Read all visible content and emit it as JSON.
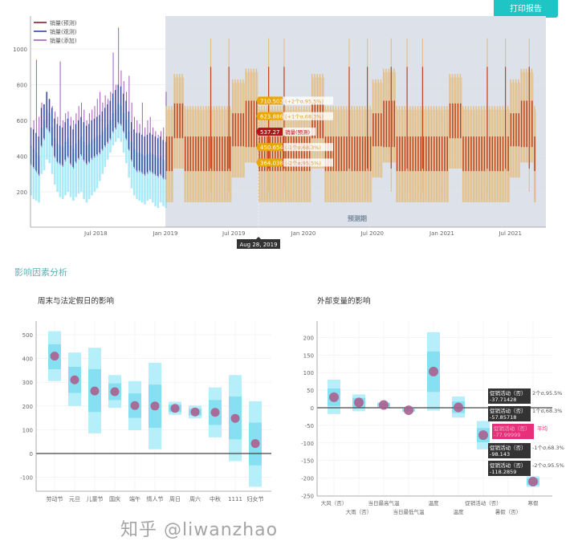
{
  "toolbar": {
    "print_label": "打印报告"
  },
  "section": {
    "title": "影响因素分析"
  },
  "colors": {
    "accent": "#1fc4c4",
    "forecast_bg": "#dde2ea",
    "forecast_1s": "#c2441c",
    "forecast_2s": "#e3c08a",
    "history_band": "#8fe3f5",
    "history_line": "#2b4aa0",
    "history_purple": "#a05cbf",
    "dot": "#a8608e",
    "band_outer": "#b6eef9",
    "band_inner": "#86e0f2"
  },
  "top_chart": {
    "legend": [
      "销量(预测)",
      "销量(观测)",
      "销量(添加)"
    ],
    "y_ticks": [
      200,
      400,
      600,
      800,
      1000
    ],
    "x_ticks": [
      "Jul 2018",
      "Jan 2019",
      "Jul 2019",
      "Jan 2020",
      "Jul 2020",
      "Jan 2021",
      "Jul 2021"
    ],
    "x_tick_dates": [
      "2018-07-01",
      "2019-01-01",
      "2019-07-01",
      "2020-01-01",
      "2020-07-01",
      "2021-01-01",
      "2021-07-01"
    ],
    "forecast_label": "预测期",
    "forecast_start": "2019-01-01",
    "forecast_end": "2021-09-10",
    "hover_date": "Aug 28, 2019",
    "tooltip": [
      {
        "value": "710.502",
        "label": "(+2个σ,95.5%)"
      },
      {
        "value": "623.886",
        "label": "(+1个σ,68.3%)"
      },
      {
        "value": "537.27",
        "label": "销量(预测)"
      },
      {
        "value": "450.654",
        "label": "(-1个σ,68.3%)"
      },
      {
        "value": "364.038",
        "label": "(-2个σ,95.5%)"
      }
    ],
    "history": {
      "start": "2018-01-08",
      "weekly_mean": [
        420,
        400,
        380,
        360,
        520,
        560,
        620,
        600,
        520,
        460,
        430,
        420,
        410,
        440,
        460,
        420,
        400,
        430,
        450,
        470,
        440,
        420,
        430,
        450,
        460,
        470,
        480,
        500,
        520,
        540,
        560,
        600,
        620,
        650,
        640,
        600,
        560,
        500,
        440,
        400,
        380,
        380,
        370,
        360,
        370,
        380,
        370,
        360,
        350,
        360,
        340,
        330
      ],
      "weekly_peak": [
        560,
        600,
        940,
        620,
        700,
        690,
        760,
        720,
        680,
        650,
        620,
        930,
        600,
        640,
        650,
        620,
        600,
        640,
        680,
        700,
        660,
        600,
        640,
        660,
        680,
        720,
        760,
        700,
        740,
        720,
        760,
        980,
        800,
        1120,
        880,
        820,
        760,
        850,
        700,
        620,
        600,
        580,
        700,
        560,
        600,
        620,
        560,
        540,
        520,
        540,
        560,
        760
      ],
      "weekly_low": [
        180,
        160,
        150,
        140,
        300,
        320,
        380,
        360,
        300,
        240,
        200,
        170,
        160,
        180,
        200,
        170,
        150,
        170,
        190,
        200,
        160,
        140,
        160,
        180,
        200,
        220,
        260,
        300,
        340,
        380,
        420,
        460,
        480,
        500,
        480,
        420,
        360,
        280,
        220,
        180,
        160,
        150,
        140,
        130,
        150,
        160,
        140,
        120,
        110,
        140,
        120,
        110
      ]
    },
    "forecast_normal": {
      "s1": [
        316,
        510
      ],
      "s2": [
        142,
        680
      ]
    },
    "forecast_segments": [
      {
        "from": "01-20",
        "to": "02-20",
        "s1": [
          500,
          695
        ],
        "s2": [
          330,
          860
        ]
      },
      {
        "from": "06-25",
        "to": "07-25",
        "s1": [
          455,
          640
        ],
        "s2": [
          280,
          830
        ]
      },
      {
        "from": "07-25",
        "to": "08-31",
        "s1": [
          450.654,
          710.502
        ],
        "s2": [
          364.038,
          890
        ]
      }
    ],
    "forecast_spikes": [
      "2019-05-01",
      "2019-06-18",
      "2019-10-01",
      "2019-11-11",
      "2020-05-01",
      "2020-06-18",
      "2020-08-20",
      "2020-10-01",
      "2020-11-11",
      "2021-05-01",
      "2021-06-18",
      "2021-08-20"
    ]
  },
  "chart_data": [
    {
      "type": "bar",
      "title": "周末与法定假日的影响",
      "categories": [
        "劳动节",
        "元旦",
        "儿童节",
        "国庆",
        "端午",
        "情人节",
        "周日",
        "周六",
        "中秋",
        "1111",
        "妇女节"
      ],
      "mean": [
        410,
        310,
        263,
        260,
        202,
        200,
        190,
        175,
        173,
        148,
        42
      ],
      "sigma1": [
        [
          355,
          460
        ],
        [
          255,
          365
        ],
        [
          175,
          355
        ],
        [
          225,
          295
        ],
        [
          150,
          253
        ],
        [
          108,
          290
        ],
        [
          175,
          205
        ],
        [
          160,
          188
        ],
        [
          120,
          225
        ],
        [
          60,
          240
        ],
        [
          -50,
          130
        ]
      ],
      "sigma2": [
        [
          305,
          515
        ],
        [
          200,
          425
        ],
        [
          85,
          445
        ],
        [
          192,
          330
        ],
        [
          98,
          305
        ],
        [
          18,
          382
        ],
        [
          163,
          218
        ],
        [
          148,
          202
        ],
        [
          68,
          278
        ],
        [
          -32,
          330
        ],
        [
          -140,
          220
        ]
      ],
      "y_ticks": [
        -100,
        0,
        100,
        200,
        300,
        400,
        500
      ],
      "ylim": [
        -180,
        550
      ]
    },
    {
      "type": "bar",
      "title": "外部变量的影响",
      "categories": [
        "大风（否）",
        "大雨（否）",
        "当日最高气温",
        "当日最低气温",
        "温度",
        "温度",
        "促销活动（否）",
        "暑假（否）",
        "寒假"
      ],
      "mean": [
        30,
        15,
        8,
        -7,
        103,
        1,
        -78,
        null,
        -210
      ],
      "sigma1": [
        [
          5,
          55
        ],
        [
          0,
          28
        ],
        [
          3,
          13
        ],
        [
          -10,
          -4
        ],
        [
          45,
          160
        ],
        [
          -15,
          18
        ],
        [
          -98.143,
          -57.85718
        ],
        null,
        [
          -220,
          -200
        ]
      ],
      "sigma2": [
        [
          -18,
          80
        ],
        [
          -10,
          38
        ],
        [
          0,
          15
        ],
        [
          -12,
          -2
        ],
        [
          -8,
          215
        ],
        [
          -28,
          32
        ],
        [
          -118.2859,
          -37.71428
        ],
        null,
        [
          -225,
          -195
        ]
      ],
      "y_ticks": [
        -250,
        -200,
        -150,
        -100,
        -50,
        0,
        50,
        100,
        150,
        200
      ],
      "ylim": [
        -250,
        230
      ],
      "tooltip": [
        {
          "name": "促销活动（否）",
          "value": "-37.71428",
          "label": "2个σ,95.5%"
        },
        {
          "name": "促销活动（否）",
          "value": "-57.85718",
          "label": "1个σ,68.3%"
        },
        {
          "name": "促销活动（否）",
          "value": "-77.99999",
          "label": "平均"
        },
        {
          "name": "促销活动（否）",
          "value": "-98.143",
          "label": "-1个σ,68.3%"
        },
        {
          "name": "促销活动（否）",
          "value": "-118.2859",
          "label": "-2个σ,95.5%"
        }
      ]
    }
  ],
  "watermark": "知乎 @liwanzhao"
}
